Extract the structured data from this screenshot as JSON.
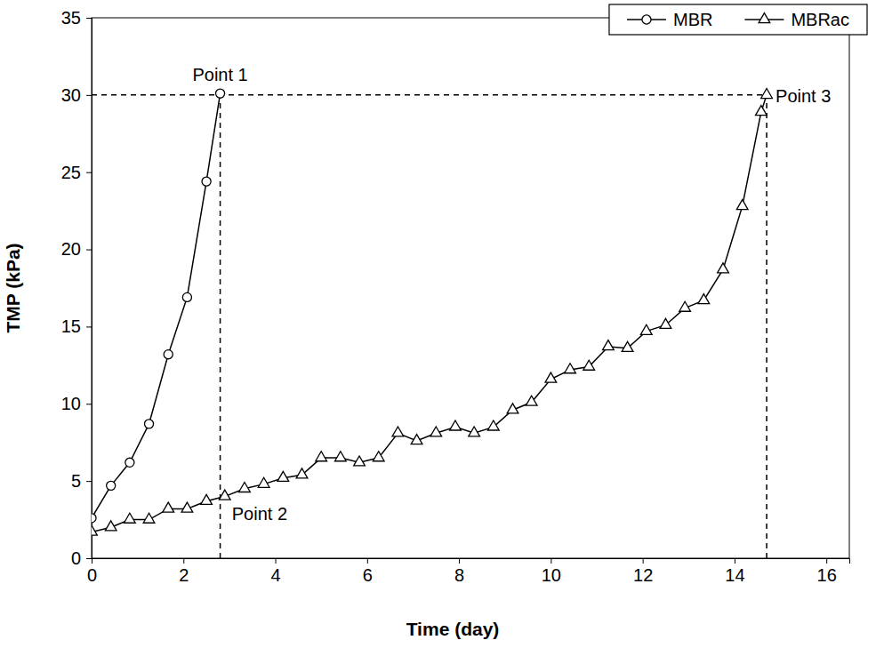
{
  "chart_data": {
    "type": "line",
    "x_label": "Time (day)",
    "y_label": "TMP (kPa)",
    "xlim": [
      0,
      16.5
    ],
    "xticks": [
      0,
      2,
      4,
      6,
      8,
      10,
      12,
      14,
      16
    ],
    "ylim": [
      0,
      35
    ],
    "yticks": [
      0,
      5,
      10,
      15,
      20,
      25,
      30,
      35
    ],
    "legend": "top-right",
    "grid": false,
    "series": [
      {
        "name": "MBR",
        "color": "#000000",
        "marker": "circle",
        "line_style": "solid",
        "x": [
          0,
          0.42,
          0.83,
          1.25,
          1.67,
          2.08,
          2.5,
          2.8
        ],
        "values": [
          2.6,
          4.7,
          6.2,
          8.7,
          13.2,
          16.9,
          24.4,
          30.1
        ]
      },
      {
        "name": "MBRac",
        "color": "#000000",
        "marker": "triangle",
        "line_style": "solid",
        "x": [
          0,
          0.42,
          0.83,
          1.25,
          1.67,
          2.08,
          2.5,
          2.9,
          3.33,
          3.75,
          4.17,
          4.58,
          5.0,
          5.42,
          5.83,
          6.25,
          6.67,
          7.08,
          7.5,
          7.92,
          8.33,
          8.75,
          9.17,
          9.58,
          10.0,
          10.42,
          10.83,
          11.25,
          11.67,
          12.08,
          12.5,
          12.92,
          13.33,
          13.75,
          14.17,
          14.58,
          14.7
        ],
        "values": [
          1.7,
          2.0,
          2.5,
          2.5,
          3.2,
          3.2,
          3.7,
          4.0,
          4.5,
          4.8,
          5.2,
          5.4,
          6.5,
          6.5,
          6.2,
          6.5,
          8.1,
          7.6,
          8.1,
          8.5,
          8.1,
          8.5,
          9.6,
          10.1,
          11.6,
          12.2,
          12.4,
          13.7,
          13.6,
          14.7,
          15.1,
          16.2,
          16.7,
          18.7,
          22.8,
          28.9,
          30.0
        ]
      }
    ],
    "reference_lines": [
      {
        "x": [
          0,
          14.7
        ],
        "y": [
          30,
          30
        ],
        "line_style": "dashed"
      },
      {
        "x": [
          2.8,
          2.8
        ],
        "y": [
          0,
          30
        ],
        "line_style": "dashed"
      },
      {
        "x": [
          14.7,
          14.7
        ],
        "y": [
          0,
          30
        ],
        "line_style": "dashed"
      }
    ],
    "annotations": [
      {
        "text": "Point 1",
        "x": 2.8,
        "y": 30.1
      },
      {
        "text": "Point 2",
        "x": 2.9,
        "y": 4.0
      },
      {
        "text": "Point 3",
        "x": 14.7,
        "y": 30.0
      }
    ]
  }
}
